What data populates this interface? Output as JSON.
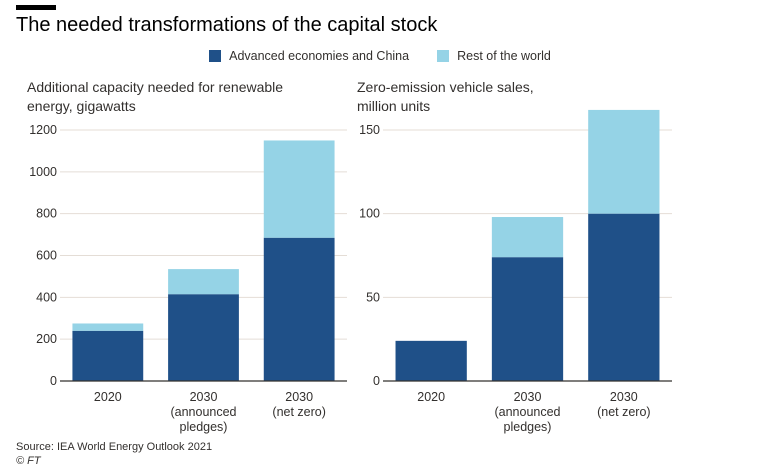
{
  "title": "The needed transformations of the capital stock",
  "legend": [
    {
      "label": "Advanced economies and China",
      "color": "#1f5088"
    },
    {
      "label": "Rest of the world",
      "color": "#95d3e6"
    }
  ],
  "colors": {
    "axis": "#33302e",
    "grid": "#e4ddd6",
    "text": "#33302e"
  },
  "source": "Source: IEA World Energy Outlook 2021",
  "credit": "© FT",
  "chart_data": [
    {
      "type": "bar",
      "stacked": true,
      "title": "Additional capacity needed for renewable energy, gigawatts",
      "title_lines": [
        "Additional capacity needed for renewable",
        "energy, gigawatts"
      ],
      "categories": [
        "2020",
        "2030 (announced pledges)",
        "2030 (net zero)"
      ],
      "category_lines": [
        [
          "2020"
        ],
        [
          "2030",
          "(announced",
          "pledges)"
        ],
        [
          "2030",
          "(net zero)"
        ]
      ],
      "series": [
        {
          "name": "Advanced economies and China",
          "values": [
            240,
            415,
            685
          ]
        },
        {
          "name": "Rest of the world",
          "values": [
            35,
            120,
            465
          ]
        }
      ],
      "yticks": [
        0,
        200,
        400,
        600,
        800,
        1000,
        1200
      ],
      "ylim": [
        0,
        1200
      ],
      "grid": true
    },
    {
      "type": "bar",
      "stacked": true,
      "title": "Zero-emission vehicle sales, million units",
      "title_lines": [
        "Zero-emission vehicle sales,",
        "million units"
      ],
      "categories": [
        "2020",
        "2030 (announced pledges)",
        "2030 (net zero)"
      ],
      "category_lines": [
        [
          "2020"
        ],
        [
          "2030",
          "(announced",
          "pledges)"
        ],
        [
          "2030",
          "(net zero)"
        ]
      ],
      "series": [
        {
          "name": "Advanced economies and China",
          "values": [
            24,
            74,
            100
          ]
        },
        {
          "name": "Rest of the world",
          "values": [
            0,
            24,
            62
          ]
        }
      ],
      "yticks": [
        0,
        50,
        100,
        150
      ],
      "ylim": [
        0,
        150
      ],
      "grid": true
    }
  ]
}
